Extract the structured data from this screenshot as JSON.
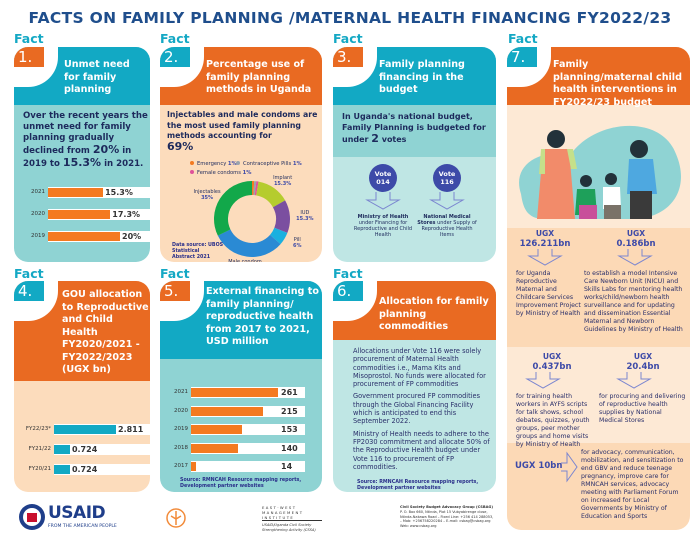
{
  "title": "FACTS ON FAMILY PLANNING /MATERNAL HEALTH FINANCING FY2022/23",
  "fact_label": "Fact",
  "colors": {
    "teal": "#12a9c4",
    "orange": "#e96a22",
    "light_teal": "#8fd3d3",
    "pale_teal": "#bfe6e4",
    "peach": "#fcdcbc",
    "pale_peach": "#fde9d5",
    "navy": "#1f4e8c"
  },
  "fact1": {
    "number": "1.",
    "title": "Unmet need for family planning",
    "text_pre": "Over the recent years the unmet need for family planning gradually declined from ",
    "v1": "20%",
    "text_mid": " in 2019 to ",
    "v2": "15.3%",
    "text_post": " in 2021.",
    "bars": [
      {
        "label": "2021",
        "value": 15.3,
        "display": "15.3%"
      },
      {
        "label": "2020",
        "value": 17.3,
        "display": "17.3%"
      },
      {
        "label": "2019",
        "value": 20,
        "display": "20%"
      }
    ]
  },
  "fact2": {
    "number": "2.",
    "title": "Percentage use of family planning methods in Uganda",
    "text": "Injectables and male condoms are the most used family planning methods accounting for",
    "highlight": "69%",
    "legend": [
      {
        "label": "Emergency",
        "value": "1%",
        "color": "#f47a20"
      },
      {
        "label": "Contraceptive Pills",
        "value": "1%",
        "color": "#9aa3ad"
      },
      {
        "label": "Female condoms",
        "value": "1%",
        "color": "#e0529a"
      }
    ],
    "slices": [
      {
        "label": "Emergency",
        "value": 1,
        "color": "#f47a20"
      },
      {
        "label": "Contraceptive Pills",
        "value": 1,
        "color": "#9aa3ad"
      },
      {
        "label": "Female condoms",
        "value": 1,
        "color": "#e0529a"
      },
      {
        "label": "Implant",
        "value": 15.3,
        "display": "15.3%",
        "color": "#b5cc2e"
      },
      {
        "label": "IUD",
        "value": 15.3,
        "display": "15.3%",
        "color": "#7b4fa0"
      },
      {
        "label": "Pill",
        "value": 6,
        "display": "6%",
        "color": "#1ab0df"
      },
      {
        "label": "Male condom",
        "value": 34,
        "display": "34%",
        "color": "#2a8ad4"
      },
      {
        "label": "Injectables",
        "value": 35,
        "display": "35%",
        "color": "#12a84a"
      }
    ],
    "source": "Data source: UBOS Statistical Abstract 2021"
  },
  "fact3": {
    "number": "3.",
    "title": "Family planning financing in the budget",
    "text_pre": "In Uganda's national budget, Family Planning is budgeted for under ",
    "count": "2",
    "text_post": " votes",
    "votes": [
      {
        "label": "Vote",
        "code": "014",
        "org": "Ministry of Health",
        "detail": "under Financing for Reproductive and Child Health"
      },
      {
        "label": "Vote",
        "code": "116",
        "org": "National Medical Stores",
        "detail": "under Supply of Reproductive Health Items"
      }
    ]
  },
  "fact4": {
    "number": "4.",
    "title": "GOU allocation to Reproductive and Child Health FY2020/2021 - FY2022/2023 (UGX bn)",
    "bars": [
      {
        "label": "FY22/23*",
        "value": 2.811,
        "display": "2.811"
      },
      {
        "label": "FY21/22",
        "value": 0.724,
        "display": "0.724"
      },
      {
        "label": "FY20/21",
        "value": 0.724,
        "display": "0.724"
      }
    ]
  },
  "fact5": {
    "number": "5.",
    "title": "External financing to family planning/ reproductive health from 2017 to 2021, USD million",
    "bars": [
      {
        "label": "2021",
        "value": 261
      },
      {
        "label": "2020",
        "value": 215
      },
      {
        "label": "2019",
        "value": 153
      },
      {
        "label": "2018",
        "value": 140
      },
      {
        "label": "2017",
        "value": 14
      }
    ],
    "source": "Source: RMNCAH Resource mapping reports, Development partner websites"
  },
  "fact6": {
    "number": "6.",
    "title": "Allocation for family planning commodities",
    "paragraphs": [
      "Allocations under Vote 116 were solely procurement of Maternal Health commodities i.e., Mama Kits and Misoprostol. No funds were allocated for procurement of FP commodities",
      "Government procured FP commodities through the Global Financing Facility which is anticipated to end this September 2022.",
      "Ministry of Health needs to adhere to the FP2030 commitment and allocate 50% of the Reproductive Health budget under Vote 116 to procurement of FP commodities."
    ],
    "source": "Source: RMNCAH Resource mapping reports, Development partner websites"
  },
  "fact7": {
    "number": "7.",
    "title": "Family planning/maternal child health interventions in FY2022/23 budget",
    "items": [
      {
        "currency": "UGX",
        "amount": "126.211bn",
        "text": "for Uganda Reproductive Maternal and Childcare Services Improvement Project by Ministry of Health"
      },
      {
        "currency": "UGX",
        "amount": "0.186bn",
        "text": "to establish a model Intensive Care Newborn Unit (NICU) and Skills Labs for mentoring health works/child/newborn health surveillance and for updating and dissemination Essential Maternal and Newborn Guidelines by Ministry of Health"
      },
      {
        "currency": "UGX",
        "amount": "0.437bn",
        "text": "for training health workers in AYFS scripts for talk shows, school debates, quizzes, youth groups, peer mother groups and home visits by Ministry of Health"
      },
      {
        "currency": "UGX",
        "amount": "20.4bn",
        "text": "for procuring and delivering of reproductive health supplies by National Medical Stores"
      },
      {
        "currency": "UGX",
        "amount": "10bn",
        "text": "for advocacy, communication, mobilization, and sensitization to end GBV and reduce teenage pregnancy, improve care for RMNCAH services, advocacy meeting with Parliament Forum on increased for Local Governments by Ministry of Education and Sports"
      }
    ]
  },
  "footer": {
    "usaid": "USAID",
    "usaid_tag": "FROM THE AMERICAN PEOPLE",
    "ewmi": "EAST·WEST MANAGEMENT INSTITUTE",
    "ewmi_tag": "USAID/Uganda Civil Society Strengthening Activity (CSSA)",
    "csbag_logo": "CSBAG",
    "contact": [
      "Civil Society Budget Advocacy Group (CSBAG)",
      "P. O. Box 660, Ntinda, Plot 15 Vubyabirenge close, Ntinda-Nakawa Road – Fixed Line: +256 414 288053,",
      "– Mob: +256758220284 – E-mail: csbag@csbag.org",
      "Web: www.csbag.org"
    ]
  }
}
